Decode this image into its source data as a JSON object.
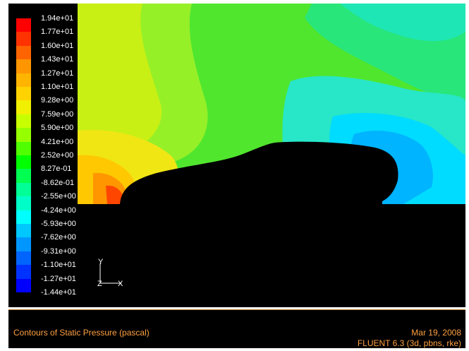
{
  "legend": {
    "labels": [
      "1.94e+01",
      "1.77e+01",
      "1.60e+01",
      "1.43e+01",
      "1.27e+01",
      "1.10e+01",
      "9.28e+00",
      "7.59e+00",
      "5.90e+00",
      "4.21e+00",
      "2.52e+00",
      "8.27e-01",
      "-8.62e-01",
      "-2.55e+00",
      "-4.24e+00",
      "-5.93e+00",
      "-7.62e+00",
      "-9.31e+00",
      "-1.10e+01",
      "-1.27e+01",
      "-1.44e+01"
    ],
    "colors": [
      "#ff0000",
      "#ff3200",
      "#ff6400",
      "#ff9600",
      "#ffb400",
      "#ffd200",
      "#f0f000",
      "#c8ff00",
      "#96ff00",
      "#50ff00",
      "#00ff00",
      "#00ff50",
      "#00ff96",
      "#00ffc8",
      "#00ffff",
      "#00c8ff",
      "#0096ff",
      "#0064ff",
      "#0032ff",
      "#0000ff"
    ]
  },
  "axes": {
    "y": "Y",
    "z": "Z",
    "x": "X"
  },
  "footer": {
    "title": "Contours of Static Pressure (pascal)",
    "date": "Mar 19, 2008",
    "software": "FLUENT 6.3 (3d, pbns, rke)"
  },
  "colors": {
    "background": "#000000",
    "text": "#ffffff",
    "footer_text": "#ffa040",
    "body": "#000000"
  }
}
